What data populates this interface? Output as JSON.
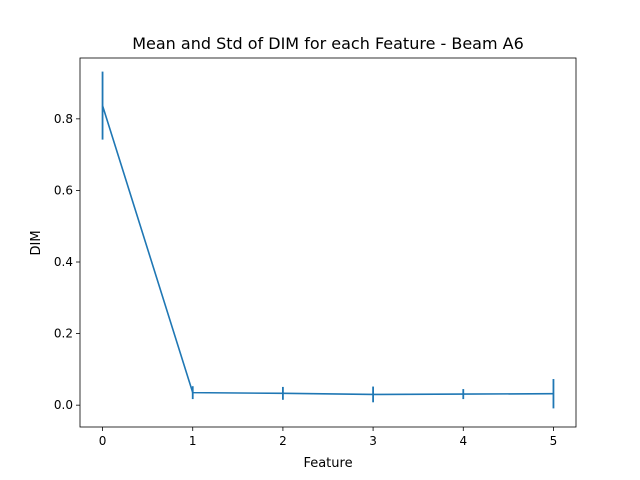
{
  "chart_data": {
    "type": "line",
    "title": "Mean and Std of DIM for each Feature - Beam A6",
    "xlabel": "Feature",
    "ylabel": "DIM",
    "x": [
      0,
      1,
      2,
      3,
      4,
      5
    ],
    "series": [
      {
        "values": [
          0.837,
          0.035,
          0.033,
          0.03,
          0.031,
          0.032
        ],
        "std": [
          0.095,
          0.018,
          0.018,
          0.022,
          0.014,
          0.041
        ],
        "color": "#1f77b4"
      }
    ],
    "xlim": [
      -0.25,
      5.25
    ],
    "ylim": [
      -0.061,
      0.97
    ],
    "xticks": [
      "0",
      "1",
      "2",
      "3",
      "4",
      "5"
    ],
    "yticks": [
      "0.0",
      "0.2",
      "0.4",
      "0.6",
      "0.8"
    ],
    "ytick_values": [
      0.0,
      0.2,
      0.4,
      0.6,
      0.8
    ],
    "grid": false,
    "legend": "none"
  }
}
